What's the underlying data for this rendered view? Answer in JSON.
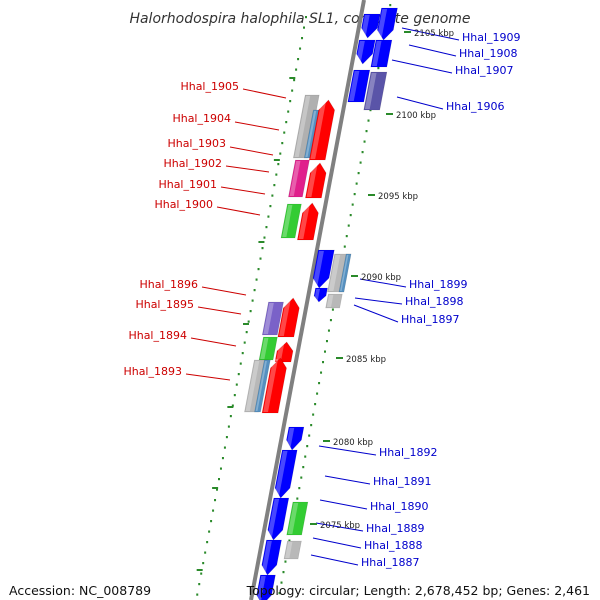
{
  "title": "Halorhodospira halophila SL1, complete genome",
  "footer": {
    "accession": "Accession: NC_008789",
    "topology": "Topology: circular; Length: 2,678,452 bp; Genes: 2,461"
  },
  "colors": {
    "forward_label": "#cc0000",
    "reverse_label": "#0000cc",
    "backbone": "#808080",
    "tick": "#2a8a2a"
  },
  "scale_labels": [
    "2105 kbp",
    "2100 kbp",
    "2095 kbp",
    "2090 kbp",
    "2085 kbp",
    "2080 kbp",
    "2075 kbp"
  ],
  "genes_forward": [
    {
      "label": "Hhal_1905",
      "color": "#b0b0b0"
    },
    {
      "label": "Hhal_1904",
      "color": "#5590c0"
    },
    {
      "label": "Hhal_1903",
      "color": "#b8b8b8"
    },
    {
      "label": "Hhal_1902",
      "color": "#e0208c"
    },
    {
      "label": "Hhal_1901",
      "color": "#ff0000"
    },
    {
      "label": "Hhal_1900",
      "color": "#33cc33"
    },
    {
      "label": "Hhal_1896",
      "color": "#ff0000"
    },
    {
      "label": "Hhal_1895",
      "color": "#7a62c8"
    },
    {
      "label": "Hhal_1894",
      "color": "#33cc33"
    },
    {
      "label": "Hhal_1893",
      "color": "#5590c0"
    }
  ],
  "genes_reverse": [
    {
      "label": "Hhal_1909",
      "color": "#0000ff"
    },
    {
      "label": "Hhal_1908",
      "color": "#0000ff"
    },
    {
      "label": "Hhal_1907",
      "color": "#0000ff"
    },
    {
      "label": "Hhal_1906",
      "color": "#5a54a8"
    },
    {
      "label": "Hhal_1899",
      "color": "#0000ff"
    },
    {
      "label": "Hhal_1898",
      "color": "#b8b8b8"
    },
    {
      "label": "Hhal_1897",
      "color": "#0000ff"
    },
    {
      "label": "Hhal_1892",
      "color": "#0000ff"
    },
    {
      "label": "Hhal_1891",
      "color": "#0000ff"
    },
    {
      "label": "Hhal_1890",
      "color": "#0000ff"
    },
    {
      "label": "Hhal_1889",
      "color": "#33cc33"
    },
    {
      "label": "Hhal_1888",
      "color": "#0000ff"
    },
    {
      "label": "Hhal_1887",
      "color": "#b8b8b8"
    }
  ]
}
